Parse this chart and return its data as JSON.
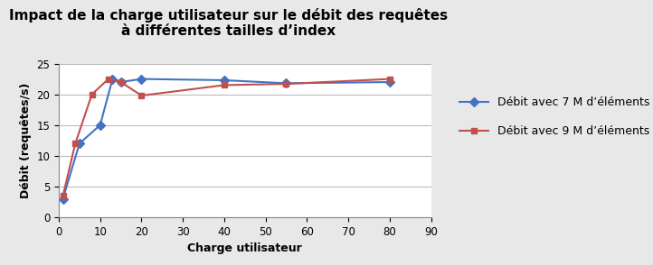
{
  "title": "Impact de la charge utilisateur sur le débit des requêtes\nà différentes tailles d’index",
  "xlabel": "Charge utilisateur",
  "ylabel": "Débit (requêtes/s)",
  "xlim": [
    0,
    90
  ],
  "ylim": [
    0,
    25
  ],
  "xticks": [
    0,
    10,
    20,
    30,
    40,
    50,
    60,
    70,
    80,
    90
  ],
  "yticks": [
    0,
    5,
    10,
    15,
    20,
    25
  ],
  "series": [
    {
      "label": "Débit avec 7 M d’éléments",
      "x": [
        1,
        5,
        10,
        13,
        15,
        20,
        40,
        55,
        80
      ],
      "y": [
        3,
        12,
        15,
        22.5,
        22,
        22.5,
        22.3,
        21.8,
        22
      ],
      "color": "#4472C4",
      "marker": "D",
      "markersize": 5,
      "linewidth": 1.5
    },
    {
      "label": "Débit avec 9 M d’éléments",
      "x": [
        1,
        4,
        8,
        12,
        15,
        20,
        40,
        55,
        80
      ],
      "y": [
        3.5,
        12,
        20,
        22.5,
        22,
        19.8,
        21.5,
        21.7,
        22.5
      ],
      "color": "#C0504D",
      "marker": "s",
      "markersize": 5,
      "linewidth": 1.5
    }
  ],
  "background_color": "#FFFFFF",
  "outer_background": "#E8E8E8",
  "grid_color": "#BBBBBB",
  "title_fontsize": 11,
  "label_fontsize": 9,
  "tick_fontsize": 8.5,
  "legend_fontsize": 9
}
